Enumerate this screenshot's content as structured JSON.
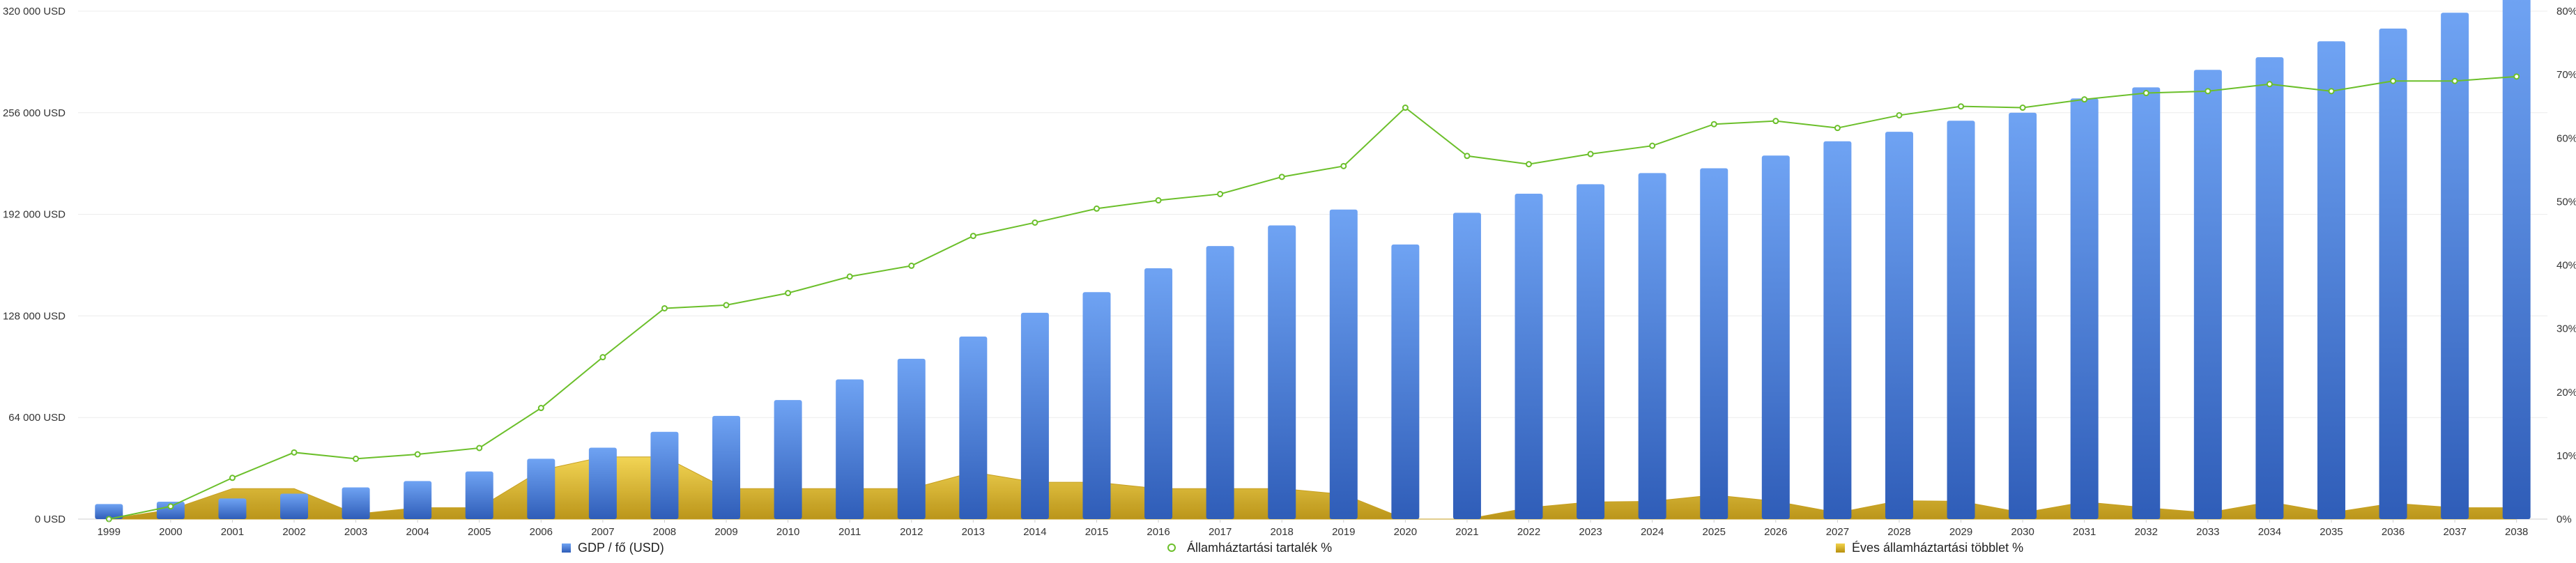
{
  "chart_data": {
    "type": "bar",
    "categories": [
      "1999",
      "2000",
      "2001",
      "2002",
      "2003",
      "2004",
      "2005",
      "2006",
      "2007",
      "2008",
      "2009",
      "2010",
      "2011",
      "2012",
      "2013",
      "2014",
      "2015",
      "2016",
      "2017",
      "2018",
      "2019",
      "2020",
      "2021",
      "2022",
      "2023",
      "2024",
      "2025",
      "2026",
      "2027",
      "2028",
      "2029",
      "2030",
      "2031",
      "2032",
      "2033",
      "2034",
      "2035",
      "2036",
      "2037",
      "2038"
    ],
    "left_axis": {
      "ticks": [
        "0 USD",
        "64 000 USD",
        "128 000 USD",
        "192 000 USD",
        "256 000 USD",
        "320 000 USD"
      ],
      "ylim": [
        0,
        320000
      ]
    },
    "right_axis": {
      "ticks": [
        "0%",
        "10%",
        "20%",
        "30%",
        "40%",
        "50%",
        "60%",
        "70%",
        "80%"
      ],
      "ylim": [
        0,
        80
      ]
    },
    "series": [
      {
        "name": "GDP / fő (USD)",
        "type": "bar",
        "axis": "left",
        "color": "#3f74d6",
        "values": [
          9500,
          11000,
          13000,
          16000,
          20000,
          24000,
          30000,
          38000,
          45000,
          55000,
          65000,
          75000,
          88000,
          101000,
          115000,
          130000,
          143000,
          158000,
          172000,
          185000,
          195000,
          173000,
          193000,
          205000,
          211000,
          218000,
          221000,
          229000,
          238000,
          244000,
          251000,
          256000,
          265000,
          272000,
          283000,
          291000,
          301000,
          309000,
          319000,
          328000
        ]
      },
      {
        "name": "Államháztartási tartalék %",
        "type": "line",
        "axis": "right",
        "color": "#6bbf2a",
        "values": [
          0,
          2,
          6.5,
          10.5,
          9.5,
          10.2,
          11.2,
          17.5,
          25.5,
          33.2,
          33.7,
          35.6,
          38.2,
          39.9,
          44.6,
          46.7,
          48.9,
          50.2,
          51.2,
          53.9,
          55.6,
          64.8,
          57.2,
          55.9,
          57.5,
          58.8,
          62.2,
          62.7,
          61.6,
          63.6,
          65.0,
          64.8,
          66.1,
          67.1,
          67.4,
          68.5,
          67.4,
          69.0,
          69.0,
          69.7
        ]
      },
      {
        "name": "Éves államháztartási többlet %",
        "type": "area",
        "axis": "right",
        "color": "#d4a91c",
        "values": [
          0,
          1.5,
          4.8,
          4.8,
          0.8,
          1.8,
          1.8,
          7.7,
          9.8,
          9.8,
          4.8,
          4.8,
          4.8,
          4.8,
          7.4,
          5.8,
          5.8,
          4.8,
          4.8,
          4.8,
          3.9,
          0,
          0,
          1.8,
          2.7,
          2.8,
          3.8,
          2.8,
          1.0,
          2.9,
          2.8,
          1.0,
          2.7,
          1.8,
          1.0,
          2.7,
          1.0,
          2.5,
          1.8,
          1.8
        ]
      }
    ],
    "legend_position": "bottom",
    "grid": true
  }
}
